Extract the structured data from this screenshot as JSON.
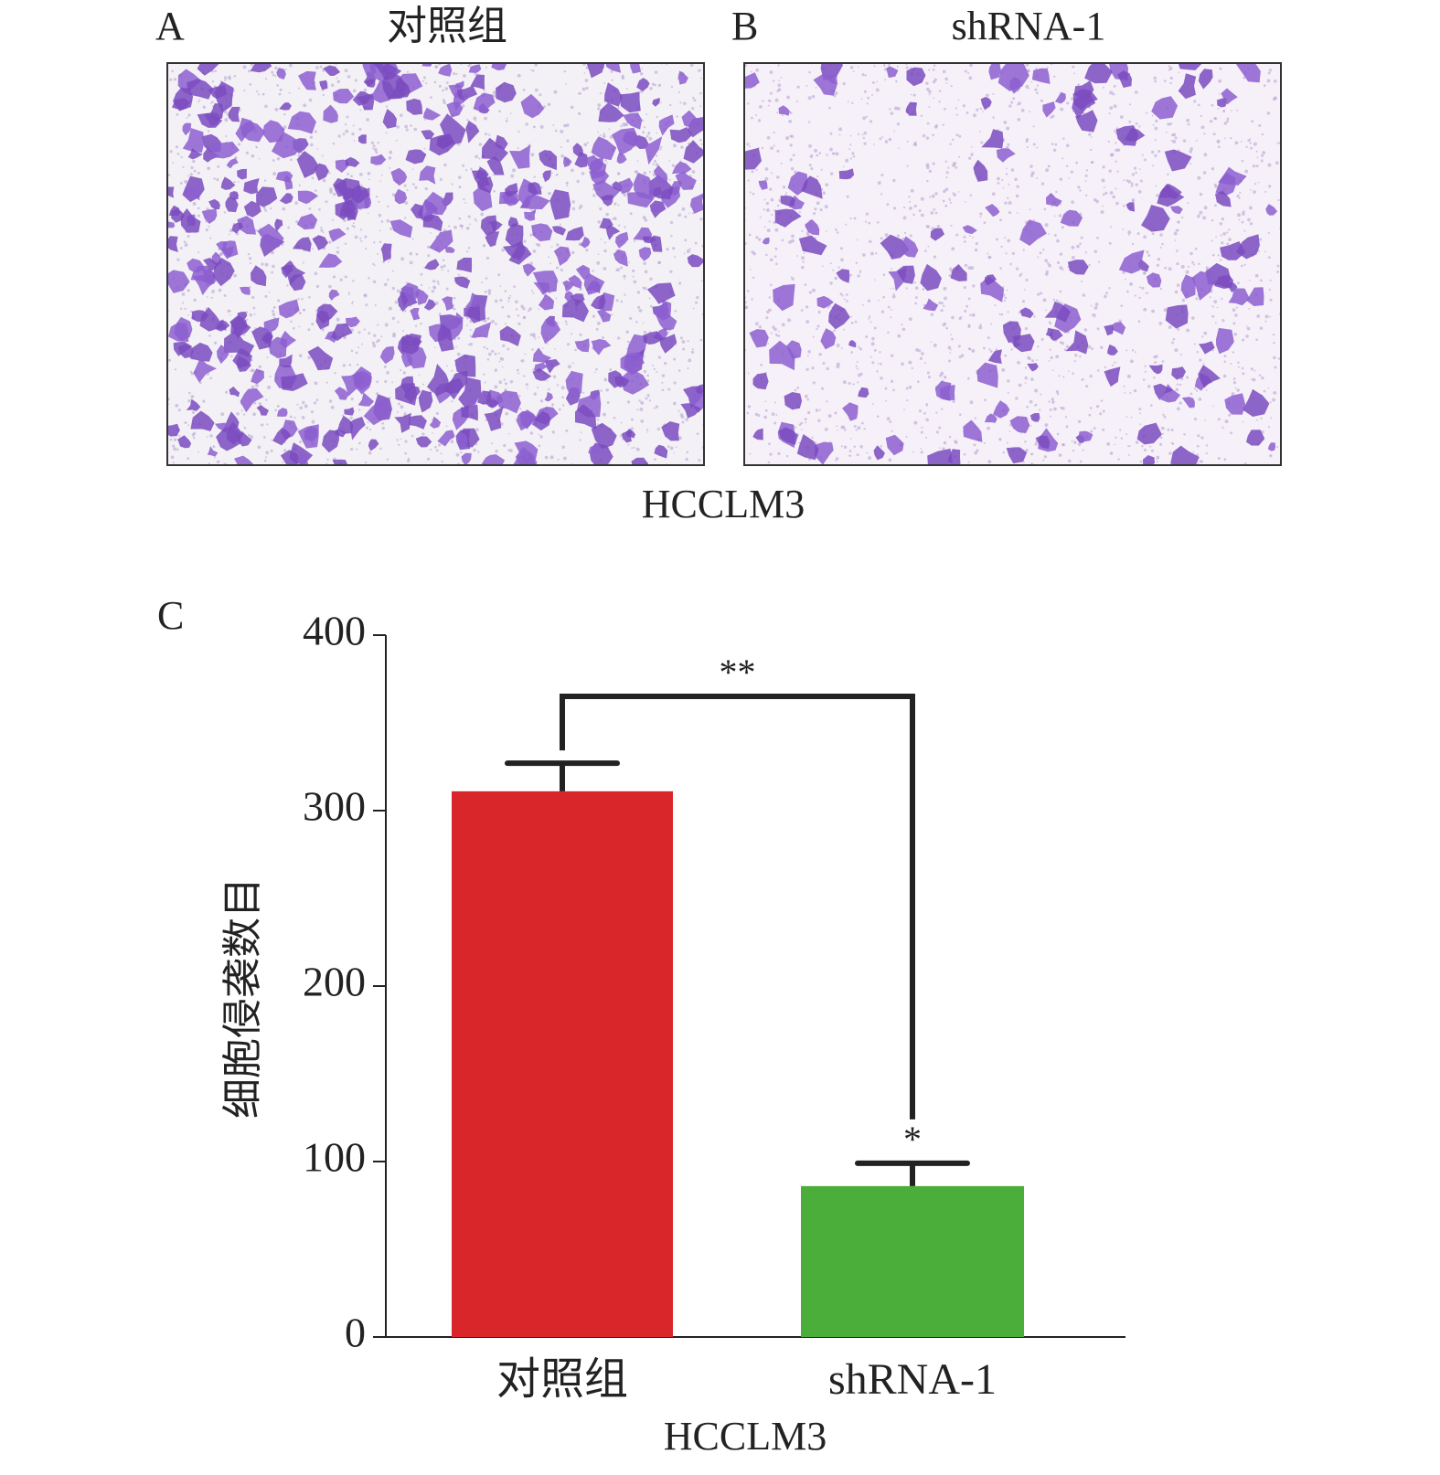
{
  "panels": [
    {
      "letter": "A",
      "title": "对照组"
    },
    {
      "letter": "B",
      "title": "shRNA-1"
    }
  ],
  "panel_caption": "HCCLM3",
  "chart_data": {
    "type": "bar",
    "panel_label": "C",
    "y_label": "细胞侵袭数目",
    "x_label": "HCCLM3",
    "categories": [
      "对照组",
      "shRNA-1"
    ],
    "values": [
      311,
      86
    ],
    "errors": [
      16,
      13
    ],
    "colors": [
      "#d9262a",
      "#4bae3a"
    ],
    "ylim": [
      0,
      400
    ],
    "yticks": [
      0,
      100,
      200,
      300,
      400
    ],
    "bracket_label": "**",
    "bar_marks": [
      null,
      "*"
    ]
  }
}
